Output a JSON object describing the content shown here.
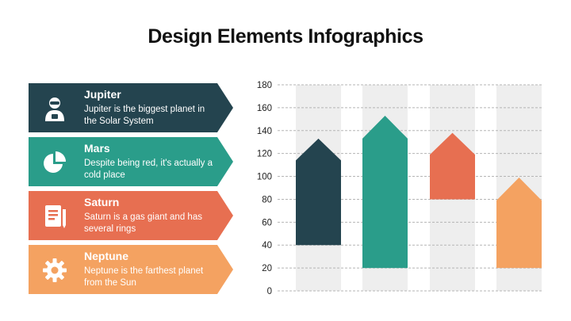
{
  "title": "Design Elements Infographics",
  "cards": [
    {
      "name": "Jupiter",
      "description": "Jupiter is the biggest planet in the Solar System",
      "color": "#24444f",
      "icon": "astronaut-icon"
    },
    {
      "name": "Mars",
      "description": "Despite being red, it's actually a cold place",
      "color": "#2a9d8a",
      "icon": "pie-chart-icon"
    },
    {
      "name": "Saturn",
      "description": "Saturn is a gas giant and has several rings",
      "color": "#e76f51",
      "icon": "document-icon"
    },
    {
      "name": "Neptune",
      "description": "Neptune is the farthest planet from the Sun",
      "color": "#f4a261",
      "icon": "gear-icon"
    }
  ],
  "chart_data": {
    "type": "bar",
    "subtype": "floating-arrow",
    "y_ticks": [
      0,
      20,
      40,
      60,
      80,
      100,
      120,
      140,
      160,
      180
    ],
    "ylim": [
      0,
      180
    ],
    "grid": "dashed-horizontal",
    "categories": [
      "Jupiter",
      "Mars",
      "Saturn",
      "Neptune"
    ],
    "series": [
      {
        "low": 40,
        "high": 114,
        "tip": 133,
        "color": "#24444f"
      },
      {
        "low": 20,
        "high": 133,
        "tip": 153,
        "color": "#2a9d8a"
      },
      {
        "low": 80,
        "high": 119,
        "tip": 138,
        "color": "#e76f51"
      },
      {
        "low": 20,
        "high": 79,
        "tip": 99,
        "color": "#f4a261"
      }
    ],
    "column_background": "#eeeeee"
  }
}
